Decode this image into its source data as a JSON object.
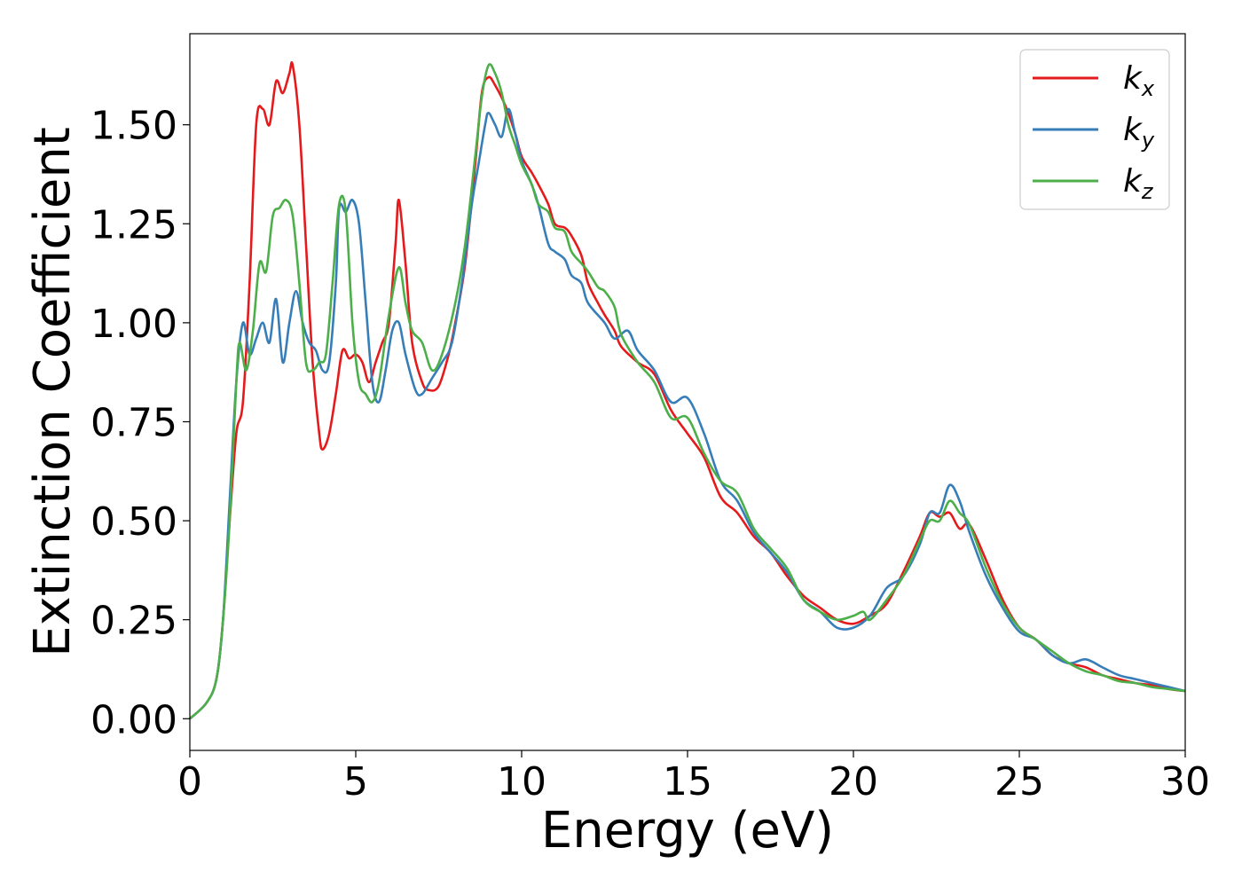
{
  "chart_data": {
    "type": "line",
    "xlabel": "Energy (eV)",
    "ylabel": "Extinction Coefficient",
    "xlim": [
      0,
      30
    ],
    "ylim": [
      -0.08,
      1.73
    ],
    "x_ticks": [
      0,
      5,
      10,
      15,
      20,
      25,
      30
    ],
    "x_tick_labels": [
      "0",
      "5",
      "10",
      "15",
      "20",
      "25",
      "30"
    ],
    "y_ticks": [
      0.0,
      0.25,
      0.5,
      0.75,
      1.0,
      1.25,
      1.5
    ],
    "y_tick_labels": [
      "0.00",
      "0.25",
      "0.50",
      "0.75",
      "1.00",
      "1.25",
      "1.50"
    ],
    "grid": false,
    "legend_position": "top-right",
    "series": [
      {
        "name": "k_x",
        "label_base": "k",
        "label_sub": "x",
        "color": "#e41a1c",
        "points": [
          [
            0,
            0
          ],
          [
            0.5,
            0.04
          ],
          [
            0.8,
            0.1
          ],
          [
            1.0,
            0.25
          ],
          [
            1.2,
            0.5
          ],
          [
            1.4,
            0.72
          ],
          [
            1.6,
            0.8
          ],
          [
            1.8,
            1.1
          ],
          [
            2.0,
            1.5
          ],
          [
            2.2,
            1.54
          ],
          [
            2.4,
            1.5
          ],
          [
            2.6,
            1.61
          ],
          [
            2.8,
            1.58
          ],
          [
            3.0,
            1.63
          ],
          [
            3.1,
            1.65
          ],
          [
            3.3,
            1.5
          ],
          [
            3.5,
            1.2
          ],
          [
            3.7,
            0.9
          ],
          [
            3.9,
            0.72
          ],
          [
            4.0,
            0.68
          ],
          [
            4.2,
            0.72
          ],
          [
            4.4,
            0.82
          ],
          [
            4.6,
            0.93
          ],
          [
            4.8,
            0.91
          ],
          [
            5.0,
            0.92
          ],
          [
            5.2,
            0.9
          ],
          [
            5.4,
            0.85
          ],
          [
            5.6,
            0.9
          ],
          [
            5.8,
            0.95
          ],
          [
            6.0,
            1.0
          ],
          [
            6.2,
            1.2
          ],
          [
            6.3,
            1.31
          ],
          [
            6.5,
            1.15
          ],
          [
            6.7,
            0.95
          ],
          [
            7.0,
            0.85
          ],
          [
            7.2,
            0.83
          ],
          [
            7.5,
            0.84
          ],
          [
            7.8,
            0.92
          ],
          [
            8.0,
            1.0
          ],
          [
            8.3,
            1.15
          ],
          [
            8.6,
            1.4
          ],
          [
            8.8,
            1.58
          ],
          [
            9.0,
            1.62
          ],
          [
            9.2,
            1.6
          ],
          [
            9.5,
            1.55
          ],
          [
            9.8,
            1.48
          ],
          [
            10.0,
            1.42
          ],
          [
            10.3,
            1.38
          ],
          [
            10.5,
            1.35
          ],
          [
            10.8,
            1.3
          ],
          [
            11.0,
            1.25
          ],
          [
            11.3,
            1.24
          ],
          [
            11.5,
            1.22
          ],
          [
            11.8,
            1.17
          ],
          [
            12.0,
            1.1
          ],
          [
            12.3,
            1.05
          ],
          [
            12.5,
            1.02
          ],
          [
            12.8,
            0.98
          ],
          [
            13.0,
            0.94
          ],
          [
            13.5,
            0.9
          ],
          [
            14.0,
            0.87
          ],
          [
            14.5,
            0.78
          ],
          [
            15.0,
            0.72
          ],
          [
            15.5,
            0.66
          ],
          [
            16.0,
            0.56
          ],
          [
            16.5,
            0.52
          ],
          [
            17.0,
            0.46
          ],
          [
            17.5,
            0.42
          ],
          [
            18.0,
            0.36
          ],
          [
            18.5,
            0.31
          ],
          [
            19.0,
            0.28
          ],
          [
            19.5,
            0.25
          ],
          [
            20.0,
            0.24
          ],
          [
            20.5,
            0.26
          ],
          [
            21.0,
            0.29
          ],
          [
            21.5,
            0.37
          ],
          [
            22.0,
            0.46
          ],
          [
            22.3,
            0.52
          ],
          [
            22.6,
            0.51
          ],
          [
            22.9,
            0.52
          ],
          [
            23.2,
            0.48
          ],
          [
            23.5,
            0.49
          ],
          [
            24.0,
            0.4
          ],
          [
            24.5,
            0.3
          ],
          [
            25.0,
            0.23
          ],
          [
            25.5,
            0.2
          ],
          [
            26.0,
            0.16
          ],
          [
            26.5,
            0.14
          ],
          [
            27.0,
            0.13
          ],
          [
            27.5,
            0.11
          ],
          [
            28.0,
            0.1
          ],
          [
            28.5,
            0.09
          ],
          [
            29.0,
            0.085
          ],
          [
            29.5,
            0.075
          ],
          [
            30.0,
            0.07
          ]
        ]
      },
      {
        "name": "k_y",
        "label_base": "k",
        "label_sub": "y",
        "color": "#377eb8",
        "points": [
          [
            0,
            0
          ],
          [
            0.5,
            0.04
          ],
          [
            0.8,
            0.1
          ],
          [
            1.0,
            0.25
          ],
          [
            1.2,
            0.55
          ],
          [
            1.4,
            0.85
          ],
          [
            1.6,
            1.0
          ],
          [
            1.8,
            0.92
          ],
          [
            2.0,
            0.96
          ],
          [
            2.2,
            1.0
          ],
          [
            2.4,
            0.95
          ],
          [
            2.6,
            1.06
          ],
          [
            2.8,
            0.9
          ],
          [
            3.0,
            1.0
          ],
          [
            3.2,
            1.08
          ],
          [
            3.4,
            1.0
          ],
          [
            3.6,
            0.95
          ],
          [
            3.8,
            0.93
          ],
          [
            4.0,
            0.88
          ],
          [
            4.2,
            0.9
          ],
          [
            4.4,
            1.1
          ],
          [
            4.5,
            1.29
          ],
          [
            4.7,
            1.28
          ],
          [
            4.9,
            1.31
          ],
          [
            5.1,
            1.25
          ],
          [
            5.3,
            1.05
          ],
          [
            5.5,
            0.85
          ],
          [
            5.7,
            0.8
          ],
          [
            5.9,
            0.88
          ],
          [
            6.1,
            0.98
          ],
          [
            6.3,
            1.0
          ],
          [
            6.5,
            0.92
          ],
          [
            6.8,
            0.83
          ],
          [
            7.0,
            0.82
          ],
          [
            7.3,
            0.86
          ],
          [
            7.6,
            0.9
          ],
          [
            7.9,
            0.95
          ],
          [
            8.2,
            1.1
          ],
          [
            8.5,
            1.3
          ],
          [
            8.7,
            1.4
          ],
          [
            8.9,
            1.5
          ],
          [
            9.0,
            1.53
          ],
          [
            9.2,
            1.5
          ],
          [
            9.4,
            1.47
          ],
          [
            9.6,
            1.54
          ],
          [
            9.8,
            1.48
          ],
          [
            10.0,
            1.41
          ],
          [
            10.3,
            1.35
          ],
          [
            10.5,
            1.3
          ],
          [
            10.8,
            1.2
          ],
          [
            11.0,
            1.18
          ],
          [
            11.3,
            1.16
          ],
          [
            11.5,
            1.12
          ],
          [
            11.8,
            1.1
          ],
          [
            12.0,
            1.05
          ],
          [
            12.5,
            1.0
          ],
          [
            12.8,
            0.96
          ],
          [
            13.2,
            0.98
          ],
          [
            13.5,
            0.93
          ],
          [
            14.0,
            0.88
          ],
          [
            14.5,
            0.8
          ],
          [
            15.0,
            0.81
          ],
          [
            15.5,
            0.72
          ],
          [
            16.0,
            0.6
          ],
          [
            16.5,
            0.55
          ],
          [
            17.0,
            0.47
          ],
          [
            17.5,
            0.42
          ],
          [
            18.0,
            0.37
          ],
          [
            18.5,
            0.3
          ],
          [
            19.0,
            0.27
          ],
          [
            19.5,
            0.23
          ],
          [
            20.0,
            0.23
          ],
          [
            20.5,
            0.26
          ],
          [
            21.0,
            0.33
          ],
          [
            21.5,
            0.36
          ],
          [
            22.0,
            0.44
          ],
          [
            22.3,
            0.52
          ],
          [
            22.6,
            0.52
          ],
          [
            22.9,
            0.59
          ],
          [
            23.2,
            0.55
          ],
          [
            23.5,
            0.47
          ],
          [
            24.0,
            0.36
          ],
          [
            24.5,
            0.28
          ],
          [
            25.0,
            0.22
          ],
          [
            25.5,
            0.2
          ],
          [
            26.0,
            0.16
          ],
          [
            26.5,
            0.14
          ],
          [
            27.0,
            0.15
          ],
          [
            27.5,
            0.13
          ],
          [
            28.0,
            0.11
          ],
          [
            28.5,
            0.1
          ],
          [
            29.0,
            0.09
          ],
          [
            29.5,
            0.08
          ],
          [
            30.0,
            0.07
          ]
        ]
      },
      {
        "name": "k_z",
        "label_base": "k",
        "label_sub": "z",
        "color": "#4daf4a",
        "points": [
          [
            0,
            0
          ],
          [
            0.5,
            0.04
          ],
          [
            0.8,
            0.1
          ],
          [
            1.0,
            0.25
          ],
          [
            1.2,
            0.5
          ],
          [
            1.4,
            0.85
          ],
          [
            1.5,
            0.95
          ],
          [
            1.7,
            0.88
          ],
          [
            1.9,
            0.98
          ],
          [
            2.1,
            1.15
          ],
          [
            2.3,
            1.13
          ],
          [
            2.5,
            1.27
          ],
          [
            2.7,
            1.29
          ],
          [
            2.9,
            1.31
          ],
          [
            3.1,
            1.27
          ],
          [
            3.3,
            1.1
          ],
          [
            3.5,
            0.9
          ],
          [
            3.7,
            0.88
          ],
          [
            3.9,
            0.9
          ],
          [
            4.1,
            0.92
          ],
          [
            4.3,
            1.1
          ],
          [
            4.5,
            1.3
          ],
          [
            4.7,
            1.28
          ],
          [
            4.9,
            1.0
          ],
          [
            5.1,
            0.85
          ],
          [
            5.3,
            0.82
          ],
          [
            5.5,
            0.8
          ],
          [
            5.7,
            0.85
          ],
          [
            6.0,
            1.02
          ],
          [
            6.3,
            1.14
          ],
          [
            6.5,
            1.05
          ],
          [
            6.7,
            0.98
          ],
          [
            7.0,
            0.95
          ],
          [
            7.3,
            0.88
          ],
          [
            7.6,
            0.92
          ],
          [
            8.0,
            1.05
          ],
          [
            8.3,
            1.2
          ],
          [
            8.6,
            1.42
          ],
          [
            8.8,
            1.57
          ],
          [
            9.0,
            1.65
          ],
          [
            9.2,
            1.63
          ],
          [
            9.4,
            1.58
          ],
          [
            9.6,
            1.5
          ],
          [
            9.8,
            1.45
          ],
          [
            10.0,
            1.4
          ],
          [
            10.3,
            1.35
          ],
          [
            10.5,
            1.3
          ],
          [
            10.8,
            1.28
          ],
          [
            11.0,
            1.24
          ],
          [
            11.3,
            1.23
          ],
          [
            11.5,
            1.18
          ],
          [
            11.8,
            1.15
          ],
          [
            12.0,
            1.13
          ],
          [
            12.3,
            1.09
          ],
          [
            12.5,
            1.08
          ],
          [
            12.8,
            1.04
          ],
          [
            13.0,
            0.97
          ],
          [
            13.5,
            0.9
          ],
          [
            14.0,
            0.85
          ],
          [
            14.5,
            0.76
          ],
          [
            15.0,
            0.76
          ],
          [
            15.5,
            0.67
          ],
          [
            16.0,
            0.6
          ],
          [
            16.5,
            0.57
          ],
          [
            17.0,
            0.48
          ],
          [
            17.5,
            0.43
          ],
          [
            18.0,
            0.38
          ],
          [
            18.5,
            0.3
          ],
          [
            19.0,
            0.27
          ],
          [
            19.5,
            0.25
          ],
          [
            20.0,
            0.26
          ],
          [
            20.3,
            0.27
          ],
          [
            20.5,
            0.25
          ],
          [
            21.0,
            0.3
          ],
          [
            21.5,
            0.36
          ],
          [
            22.0,
            0.45
          ],
          [
            22.3,
            0.5
          ],
          [
            22.6,
            0.5
          ],
          [
            22.9,
            0.55
          ],
          [
            23.2,
            0.52
          ],
          [
            23.5,
            0.49
          ],
          [
            24.0,
            0.38
          ],
          [
            24.5,
            0.29
          ],
          [
            25.0,
            0.23
          ],
          [
            25.5,
            0.2
          ],
          [
            26.0,
            0.17
          ],
          [
            26.5,
            0.14
          ],
          [
            27.0,
            0.12
          ],
          [
            27.5,
            0.11
          ],
          [
            28.0,
            0.095
          ],
          [
            28.5,
            0.09
          ],
          [
            29.0,
            0.08
          ],
          [
            29.5,
            0.075
          ],
          [
            30.0,
            0.07
          ]
        ]
      }
    ]
  }
}
